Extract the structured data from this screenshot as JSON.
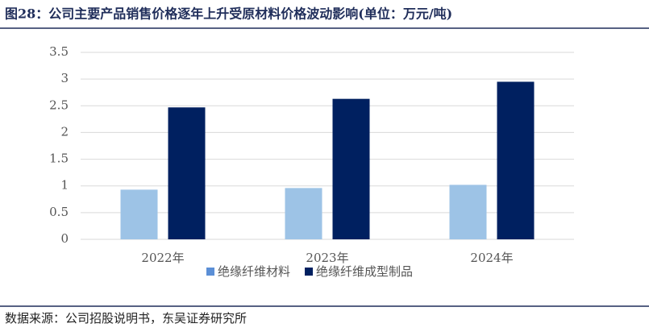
{
  "chart_data": {
    "type": "bar",
    "title": "图28：公司主要产品销售价格逐年上升受原材料价格波动影响(单位：万元/吨)",
    "source": "数据来源：公司招股说明书，东吴证券研究所",
    "categories": [
      "2022年",
      "2023年",
      "2024年"
    ],
    "series": [
      {
        "name": "绝缘纤维材料",
        "color": "#9dc3e6",
        "values": [
          0.93,
          0.96,
          1.02
        ]
      },
      {
        "name": "绝缘纤维成型制品",
        "color": "#002060",
        "values": [
          2.47,
          2.63,
          2.95
        ]
      }
    ],
    "ylim": [
      0,
      3.5
    ],
    "yticks": [
      0,
      0.5,
      1,
      1.5,
      2,
      2.5,
      3,
      3.5
    ],
    "grid": true,
    "legend": "bottom"
  }
}
